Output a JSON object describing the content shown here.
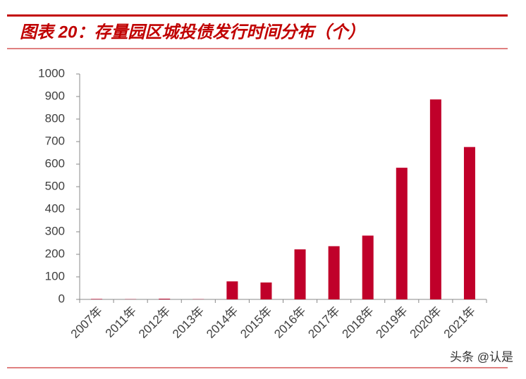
{
  "chart_data": {
    "type": "bar",
    "title": "图表 20：存量园区城投债发行时间分布（个）",
    "categories": [
      "2007年",
      "2011年",
      "2012年",
      "2013年",
      "2014年",
      "2015年",
      "2016年",
      "2017年",
      "2018年",
      "2019年",
      "2020年",
      "2021年"
    ],
    "values": [
      2,
      1,
      3,
      1,
      80,
      75,
      222,
      236,
      283,
      584,
      887,
      676
    ],
    "color": "#c0002a",
    "ylim": [
      0,
      1000
    ],
    "yticks": [
      0,
      100,
      200,
      300,
      400,
      500,
      600,
      700,
      800,
      900,
      1000
    ],
    "grid": false
  },
  "watermark": "头条 @认是"
}
